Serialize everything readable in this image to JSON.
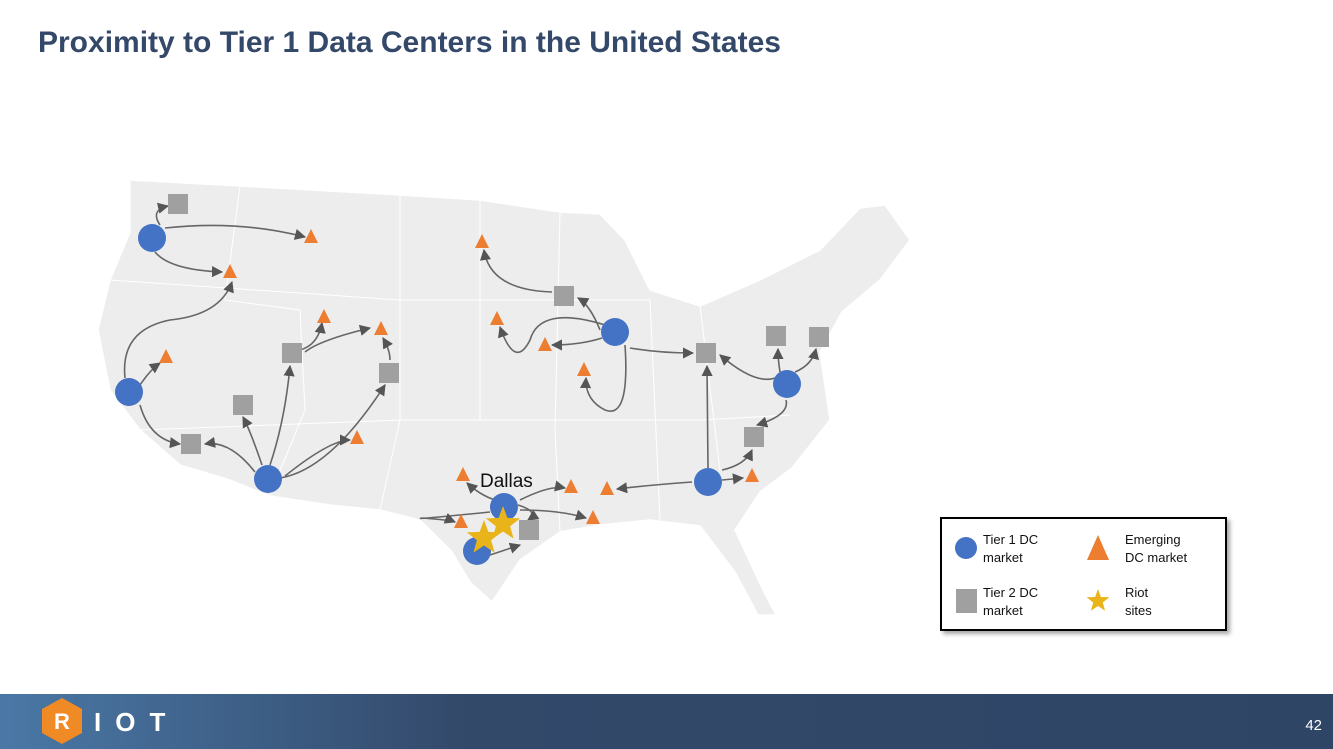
{
  "header": {
    "title": "Proximity to Tier 1 Data Centers in the United States"
  },
  "map": {
    "city_label": "Dallas"
  },
  "legend": {
    "items": [
      {
        "lines": [
          "Tier 1 DC",
          "market"
        ]
      },
      {
        "lines": [
          "Emerging",
          "DC market"
        ]
      },
      {
        "lines": [
          "Tier 2 DC",
          "market"
        ]
      },
      {
        "lines": [
          "Riot",
          "sites"
        ]
      }
    ]
  },
  "footer": {
    "logo_letter": "R",
    "logo_text": "IOT",
    "page_number": "42"
  }
}
